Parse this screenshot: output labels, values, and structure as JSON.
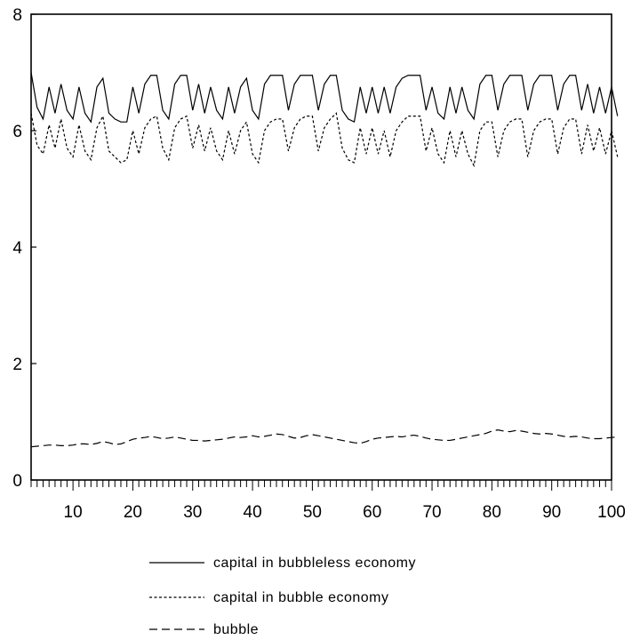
{
  "chart_data": {
    "type": "line",
    "title": "",
    "xlabel": "",
    "ylabel": "",
    "xlim": [
      3,
      100
    ],
    "ylim": [
      0,
      8
    ],
    "x_ticks": [
      10,
      20,
      30,
      40,
      50,
      60,
      70,
      80,
      90,
      100
    ],
    "y_ticks": [
      0,
      2,
      4,
      6,
      8
    ],
    "grid": false,
    "legend_position": "bottom",
    "series": [
      {
        "name": "capital in bubbleless economy",
        "style": "solid",
        "x_start": 3,
        "values": [
          7.0,
          6.4,
          6.2,
          6.75,
          6.3,
          6.8,
          6.35,
          6.2,
          6.75,
          6.3,
          6.15,
          6.75,
          6.9,
          6.3,
          6.2,
          6.15,
          6.15,
          6.75,
          6.3,
          6.8,
          6.95,
          6.95,
          6.35,
          6.2,
          6.8,
          6.95,
          6.95,
          6.35,
          6.8,
          6.3,
          6.75,
          6.35,
          6.2,
          6.75,
          6.3,
          6.75,
          6.9,
          6.35,
          6.2,
          6.8,
          6.95,
          6.95,
          6.95,
          6.35,
          6.8,
          6.95,
          6.95,
          6.95,
          6.35,
          6.8,
          6.95,
          6.95,
          6.35,
          6.2,
          6.15,
          6.75,
          6.3,
          6.75,
          6.3,
          6.75,
          6.3,
          6.75,
          6.9,
          6.95,
          6.95,
          6.95,
          6.35,
          6.75,
          6.3,
          6.2,
          6.75,
          6.3,
          6.75,
          6.35,
          6.2,
          6.8,
          6.95,
          6.95,
          6.35,
          6.8,
          6.95,
          6.95,
          6.95,
          6.35,
          6.8,
          6.95,
          6.95,
          6.95,
          6.35,
          6.8,
          6.95,
          6.95,
          6.35,
          6.8,
          6.3,
          6.75,
          6.3,
          6.75,
          6.25
        ]
      },
      {
        "name": "capital in bubble economy",
        "style": "dotted",
        "x_start": 3,
        "values": [
          6.3,
          5.75,
          5.6,
          6.1,
          5.7,
          6.2,
          5.7,
          5.55,
          6.1,
          5.65,
          5.5,
          6.05,
          6.25,
          5.65,
          5.55,
          5.45,
          5.5,
          6.0,
          5.6,
          6.05,
          6.2,
          6.25,
          5.7,
          5.5,
          6.05,
          6.2,
          6.25,
          5.7,
          6.1,
          5.65,
          6.05,
          5.65,
          5.5,
          6.0,
          5.6,
          6.0,
          6.15,
          5.6,
          5.45,
          6.0,
          6.15,
          6.2,
          6.2,
          5.65,
          6.05,
          6.2,
          6.25,
          6.25,
          5.65,
          6.05,
          6.2,
          6.3,
          5.7,
          5.5,
          5.45,
          6.05,
          5.6,
          6.05,
          5.6,
          6.0,
          5.55,
          6.0,
          6.15,
          6.25,
          6.25,
          6.25,
          5.65,
          6.05,
          5.6,
          5.45,
          6.0,
          5.55,
          6.0,
          5.6,
          5.4,
          6.0,
          6.15,
          6.15,
          5.55,
          6.0,
          6.15,
          6.2,
          6.2,
          5.55,
          6.0,
          6.15,
          6.2,
          6.2,
          5.6,
          6.05,
          6.2,
          6.2,
          5.6,
          6.1,
          5.65,
          6.05,
          5.6,
          6.0,
          5.55
        ]
      },
      {
        "name": "bubble",
        "style": "dashed",
        "x_start": 3,
        "values": [
          0.57,
          0.58,
          0.59,
          0.6,
          0.6,
          0.59,
          0.59,
          0.6,
          0.62,
          0.62,
          0.61,
          0.63,
          0.66,
          0.64,
          0.61,
          0.62,
          0.66,
          0.7,
          0.72,
          0.73,
          0.75,
          0.73,
          0.71,
          0.72,
          0.74,
          0.72,
          0.7,
          0.68,
          0.68,
          0.67,
          0.68,
          0.69,
          0.7,
          0.72,
          0.74,
          0.73,
          0.74,
          0.76,
          0.74,
          0.75,
          0.77,
          0.79,
          0.78,
          0.75,
          0.72,
          0.73,
          0.76,
          0.78,
          0.76,
          0.74,
          0.72,
          0.7,
          0.68,
          0.66,
          0.64,
          0.63,
          0.66,
          0.7,
          0.72,
          0.73,
          0.74,
          0.75,
          0.74,
          0.76,
          0.77,
          0.75,
          0.72,
          0.7,
          0.69,
          0.68,
          0.68,
          0.7,
          0.72,
          0.74,
          0.76,
          0.78,
          0.8,
          0.84,
          0.86,
          0.84,
          0.83,
          0.85,
          0.84,
          0.82,
          0.8,
          0.79,
          0.8,
          0.79,
          0.77,
          0.75,
          0.74,
          0.75,
          0.74,
          0.72,
          0.71,
          0.71,
          0.72,
          0.73,
          0.74
        ]
      }
    ]
  }
}
